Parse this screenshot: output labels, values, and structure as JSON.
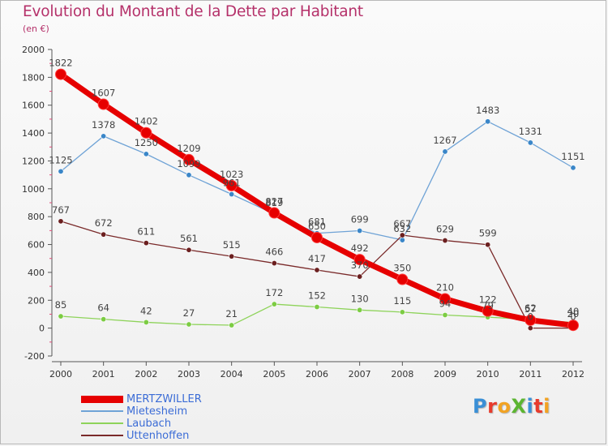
{
  "header": {
    "title": "Evolution du Montant de la Dette par Habitant",
    "subtitle": "(en €)"
  },
  "logo": {
    "text": "ProXiti",
    "colors": [
      "#3a8fd6",
      "#e83b2d",
      "#f2a323",
      "#5cb531",
      "#3a8fd6",
      "#e83b2d",
      "#f2a323"
    ]
  },
  "chart_data": {
    "type": "line",
    "title": "Evolution du Montant de la Dette par Habitant",
    "subtitle": "(en €)",
    "xlabel": "",
    "ylabel": "",
    "x": [
      "2000",
      "2001",
      "2002",
      "2003",
      "2004",
      "2005",
      "2006",
      "2007",
      "2008",
      "2009",
      "2010",
      "2011",
      "2012"
    ],
    "ylim": [
      -200,
      2000
    ],
    "yticks": [
      -200,
      0,
      200,
      400,
      600,
      800,
      1000,
      1200,
      1400,
      1600,
      1800,
      2000
    ],
    "grid": false,
    "legend_position": "bottom-left",
    "series": [
      {
        "name": "MERTZWILLER",
        "color": "#e60000",
        "marker": "#e60000",
        "width": 7,
        "values": [
          1822,
          1607,
          1402,
          1209,
          1023,
          827,
          650,
          492,
          350,
          210,
          122,
          57,
          20
        ]
      },
      {
        "name": "Mietesheim",
        "color": "#6fa3d6",
        "marker": "#3a86c8",
        "width": 1.3,
        "values": [
          1125,
          1378,
          1250,
          1099,
          961,
          819,
          681,
          699,
          632,
          1267,
          1483,
          1331,
          1151
        ]
      },
      {
        "name": "Laubach",
        "color": "#8ed35a",
        "marker": "#7ccc43",
        "width": 1.3,
        "values": [
          85,
          64,
          42,
          27,
          21,
          172,
          152,
          130,
          115,
          94,
          79,
          62,
          40
        ]
      },
      {
        "name": "Uttenhoffen",
        "color": "#7a2a2a",
        "marker": "#6b1f1f",
        "width": 1.3,
        "values": [
          767,
          672,
          611,
          561,
          515,
          466,
          417,
          370,
          667,
          629,
          599,
          0,
          0
        ]
      }
    ]
  }
}
